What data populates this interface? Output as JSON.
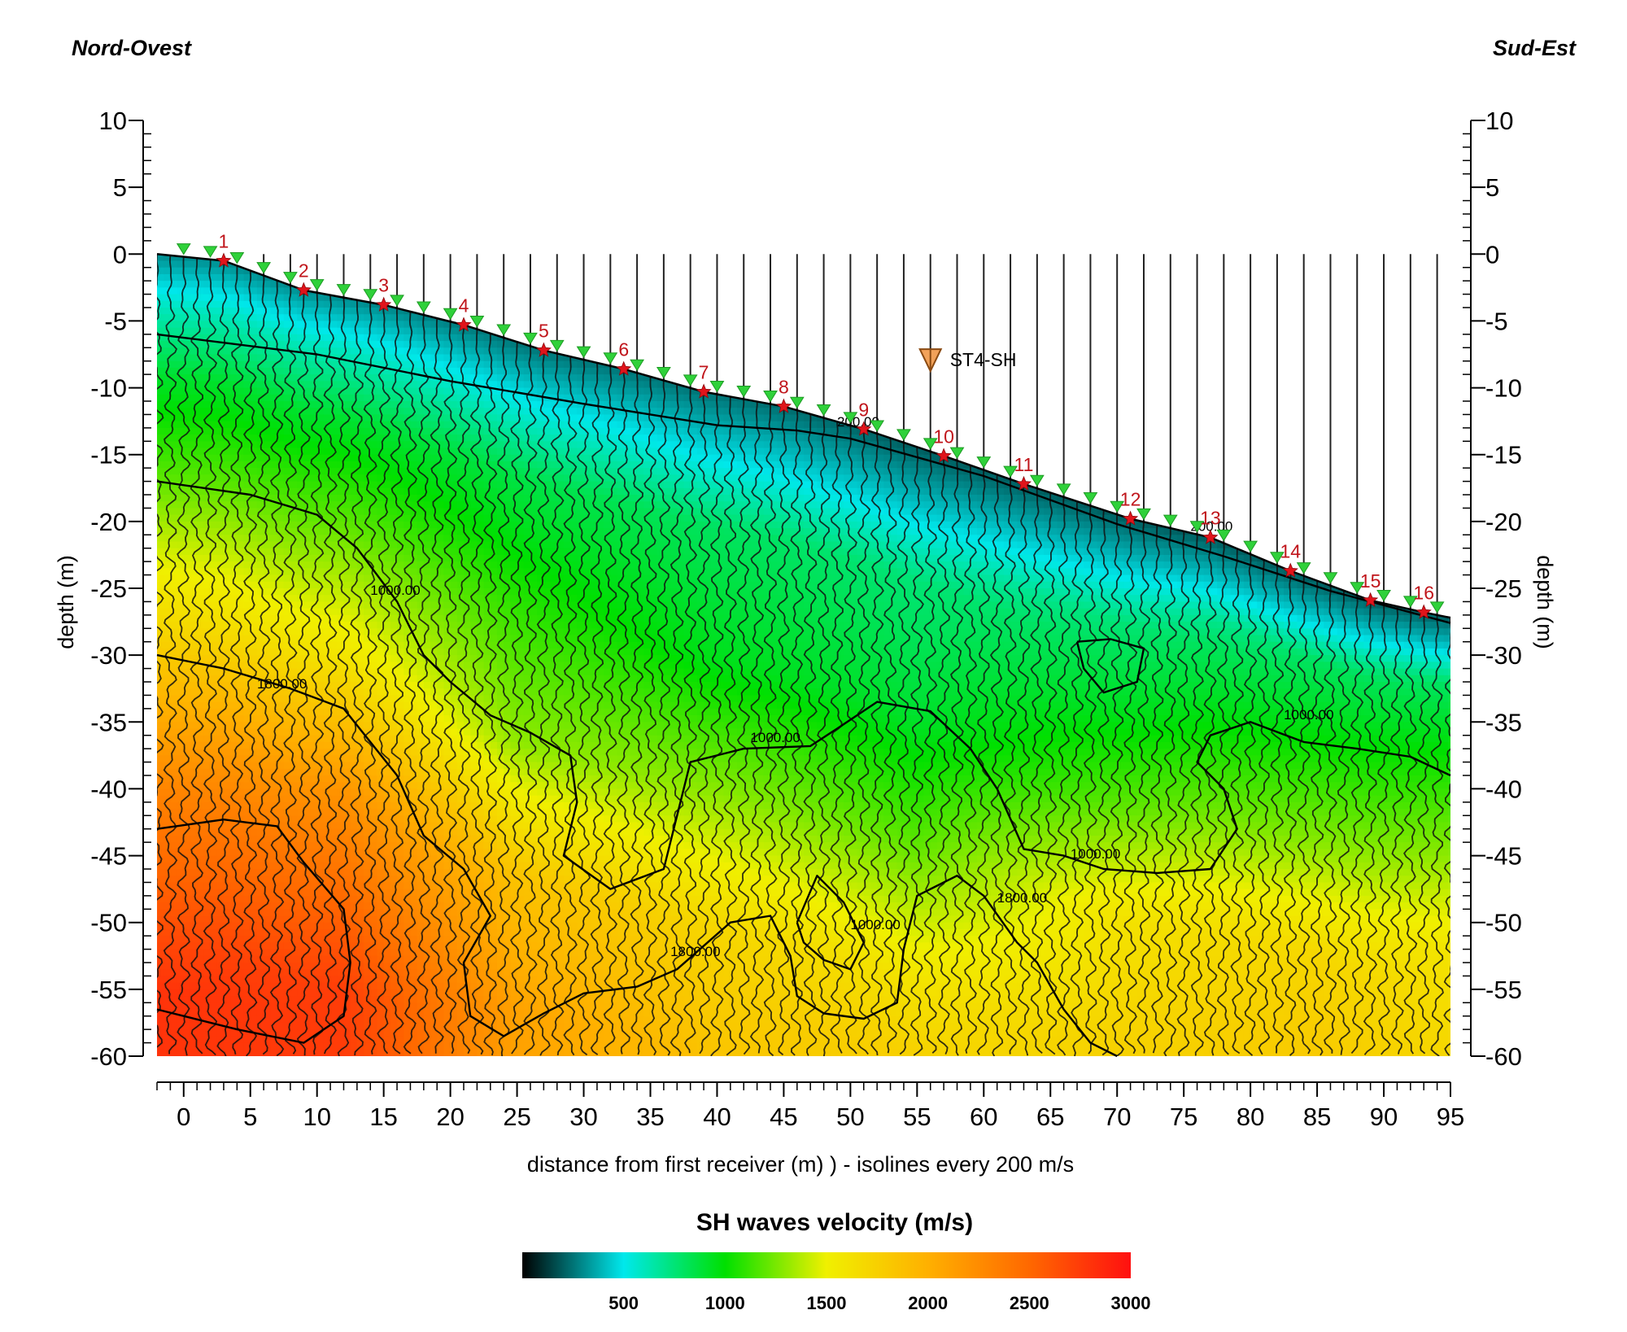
{
  "corner_left": "Nord-Ovest",
  "corner_right": "Sud-Est",
  "station_label": "ST4-SH",
  "colorbar": {
    "title": "SH waves velocity (m/s)",
    "ticks": [
      500,
      1000,
      1500,
      2000,
      2500,
      3000
    ],
    "range": [
      0,
      3000
    ],
    "stops": [
      {
        "v": 0,
        "color": "#000000"
      },
      {
        "v": 500,
        "color": "#00e8ec"
      },
      {
        "v": 1000,
        "color": "#00e000"
      },
      {
        "v": 1500,
        "color": "#f0f000"
      },
      {
        "v": 2000,
        "color": "#ffb000"
      },
      {
        "v": 2500,
        "color": "#ff6800"
      },
      {
        "v": 3000,
        "color": "#ff1010"
      }
    ]
  },
  "chart_data": {
    "type": "heatmap",
    "xlabel": "distance from first receiver (m) ) - isolines every 200 m/s",
    "ylabel": "depth (m)",
    "xlim": [
      -2,
      95
    ],
    "ylim": [
      -60,
      10
    ],
    "xticks": [
      0,
      5,
      10,
      15,
      20,
      25,
      30,
      35,
      40,
      45,
      50,
      55,
      60,
      65,
      70,
      75,
      80,
      85,
      90,
      95
    ],
    "yticks": [
      10,
      5,
      0,
      -5,
      -10,
      -15,
      -20,
      -25,
      -30,
      -35,
      -40,
      -45,
      -50,
      -55,
      -60
    ],
    "surface": [
      [
        -2,
        0
      ],
      [
        3,
        -0.5
      ],
      [
        9,
        -2.7
      ],
      [
        15,
        -3.8
      ],
      [
        21,
        -5.3
      ],
      [
        27,
        -7.2
      ],
      [
        33,
        -8.6
      ],
      [
        39,
        -10.3
      ],
      [
        45,
        -11.4
      ],
      [
        51,
        -13.1
      ],
      [
        57,
        -15.1
      ],
      [
        63,
        -17.2
      ],
      [
        71,
        -19.8
      ],
      [
        77,
        -21.2
      ],
      [
        83,
        -23.7
      ],
      [
        89,
        -25.9
      ],
      [
        93,
        -26.8
      ],
      [
        95,
        -27.2
      ]
    ],
    "sources": [
      {
        "label": "1",
        "x": 3,
        "y": -0.5
      },
      {
        "label": "2",
        "x": 9,
        "y": -2.7
      },
      {
        "label": "3",
        "x": 15,
        "y": -3.8
      },
      {
        "label": "4",
        "x": 21,
        "y": -5.3
      },
      {
        "label": "5",
        "x": 27,
        "y": -7.2
      },
      {
        "label": "6",
        "x": 33,
        "y": -8.6
      },
      {
        "label": "7",
        "x": 39,
        "y": -10.3
      },
      {
        "label": "8",
        "x": 45,
        "y": -11.4
      },
      {
        "label": "9",
        "x": 51,
        "y": -13.1
      },
      {
        "label": "10",
        "x": 57,
        "y": -15.1
      },
      {
        "label": "11",
        "x": 63,
        "y": -17.2
      },
      {
        "label": "12",
        "x": 71,
        "y": -19.8
      },
      {
        "label": "13",
        "x": 77,
        "y": -21.2
      },
      {
        "label": "14",
        "x": 83,
        "y": -23.7
      },
      {
        "label": "15",
        "x": 89,
        "y": -25.9
      },
      {
        "label": "16",
        "x": 93,
        "y": -26.8
      }
    ],
    "receivers_x": [
      0,
      2,
      4,
      6,
      8,
      10,
      12,
      14,
      16,
      18,
      20,
      22,
      24,
      26,
      28,
      30,
      32,
      34,
      36,
      38,
      40,
      42,
      44,
      46,
      48,
      50,
      52,
      54,
      56,
      58,
      60,
      62,
      64,
      66,
      68,
      70,
      72,
      74,
      76,
      78,
      80,
      82,
      84,
      86,
      88,
      90,
      92,
      94
    ],
    "trace_spacing": 1,
    "station": {
      "x": 56,
      "y": -7.9
    },
    "isolines": [
      {
        "label": "200.00",
        "points": [
          [
            -2,
            -6
          ],
          [
            10,
            -7.5
          ],
          [
            20,
            -9.5
          ],
          [
            30,
            -11.2
          ],
          [
            40,
            -12.8
          ],
          [
            46,
            -13.2
          ],
          [
            50,
            -13.8
          ],
          [
            60,
            -16.6
          ],
          [
            70,
            -20.2
          ],
          [
            78,
            -22.6
          ],
          [
            86,
            -25.2
          ],
          [
            95,
            -27.6
          ]
        ],
        "labels": [
          [
            49,
            -12.9
          ],
          [
            75.5,
            -20.7
          ]
        ]
      },
      {
        "label": "1000.00",
        "points": [
          [
            -2,
            -17
          ],
          [
            5,
            -18
          ],
          [
            10,
            -19.5
          ],
          [
            13,
            -22
          ],
          [
            16,
            -26
          ],
          [
            18,
            -30
          ],
          [
            20,
            -32
          ],
          [
            23,
            -34.5
          ],
          [
            26,
            -35.8
          ],
          [
            29,
            -37.5
          ],
          [
            29.5,
            -41
          ],
          [
            28.5,
            -45
          ],
          [
            32,
            -47.5
          ],
          [
            36,
            -46
          ],
          [
            37,
            -42
          ],
          [
            38,
            -38
          ],
          [
            42,
            -37
          ],
          [
            47,
            -36.8
          ],
          [
            49,
            -35.5
          ],
          [
            52,
            -33.5
          ],
          [
            56,
            -34.2
          ],
          [
            59,
            -37
          ],
          [
            61,
            -40
          ],
          [
            63,
            -44.5
          ],
          [
            66,
            -45
          ],
          [
            69,
            -46
          ],
          [
            73,
            -46.3
          ],
          [
            77,
            -46
          ],
          [
            79,
            -43
          ],
          [
            78,
            -40
          ],
          [
            76,
            -38
          ],
          [
            77,
            -36
          ],
          [
            80,
            -35
          ],
          [
            84,
            -36.5
          ],
          [
            88,
            -37
          ],
          [
            92,
            -37.6
          ],
          [
            95,
            -39
          ]
        ],
        "labels": [
          [
            14,
            -25.5
          ],
          [
            42.5,
            -36.5
          ],
          [
            82.5,
            -34.8
          ],
          [
            66.5,
            -45.2
          ]
        ]
      },
      {
        "label": "1000.00",
        "points": [
          [
            67,
            -29
          ],
          [
            69.5,
            -28.8
          ],
          [
            72,
            -29.5
          ],
          [
            71.5,
            -32
          ],
          [
            69,
            -32.8
          ],
          [
            67.5,
            -31
          ],
          [
            67,
            -29
          ]
        ],
        "labels": []
      },
      {
        "label": "1000.00",
        "points": [
          [
            46,
            -50
          ],
          [
            47.5,
            -46.5
          ],
          [
            49.5,
            -48.5
          ],
          [
            51,
            -51.5
          ],
          [
            50,
            -53.5
          ],
          [
            48,
            -52.8
          ],
          [
            46.5,
            -51.5
          ],
          [
            46,
            -50
          ]
        ],
        "labels": [
          [
            50,
            -50.5
          ]
        ]
      },
      {
        "label": "1800.00",
        "points": [
          [
            -2,
            -30
          ],
          [
            3,
            -31
          ],
          [
            8,
            -32.5
          ],
          [
            12,
            -34
          ],
          [
            16,
            -39
          ],
          [
            18,
            -43.5
          ],
          [
            21,
            -46
          ],
          [
            23,
            -49.5
          ],
          [
            21,
            -53
          ],
          [
            21.5,
            -57
          ],
          [
            24,
            -58.5
          ],
          [
            27,
            -56.8
          ],
          [
            30,
            -55.3
          ],
          [
            34,
            -54.8
          ],
          [
            37,
            -53.5
          ],
          [
            41,
            -50
          ],
          [
            44,
            -49.5
          ],
          [
            45.5,
            -52.5
          ],
          [
            46,
            -55.5
          ],
          [
            48,
            -56.8
          ],
          [
            51,
            -57.2
          ],
          [
            53.5,
            -56
          ],
          [
            54,
            -52
          ],
          [
            55,
            -48
          ],
          [
            58,
            -46.5
          ],
          [
            60,
            -48
          ],
          [
            62.5,
            -51.5
          ],
          [
            64,
            -53
          ],
          [
            66,
            -56.5
          ],
          [
            68,
            -59
          ],
          [
            70,
            -60
          ]
        ],
        "labels": [
          [
            5.5,
            -32.5
          ],
          [
            36.5,
            -52.5
          ],
          [
            61,
            -48.5
          ]
        ]
      },
      {
        "label": "1800.00",
        "points": [
          [
            -2,
            -43
          ],
          [
            3,
            -42.3
          ],
          [
            7,
            -42.8
          ],
          [
            9,
            -45.5
          ],
          [
            12,
            -49
          ],
          [
            12.5,
            -53
          ],
          [
            12,
            -57
          ],
          [
            9,
            -59
          ],
          [
            4,
            -58
          ],
          [
            0,
            -57
          ],
          [
            -2,
            -56.5
          ]
        ],
        "labels": []
      }
    ],
    "field_control": [
      {
        "x": -2,
        "top": 0,
        "v": [
          [
            0,
            300
          ],
          [
            4,
            600
          ],
          [
            9,
            900
          ],
          [
            17,
            1200
          ],
          [
            28,
            1700
          ],
          [
            40,
            2300
          ],
          [
            55,
            2800
          ]
        ]
      },
      {
        "x": 12,
        "top": -3.2,
        "v": [
          [
            0,
            300
          ],
          [
            4,
            600
          ],
          [
            9,
            900
          ],
          [
            17,
            1200
          ],
          [
            27,
            1600
          ],
          [
            37,
            2200
          ],
          [
            52,
            2750
          ]
        ]
      },
      {
        "x": 25,
        "top": -6.5,
        "v": [
          [
            0,
            250
          ],
          [
            5,
            550
          ],
          [
            10,
            850
          ],
          [
            20,
            1100
          ],
          [
            30,
            1300
          ],
          [
            40,
            1850
          ],
          [
            50,
            2100
          ]
        ]
      },
      {
        "x": 40,
        "top": -10.6,
        "v": [
          [
            0,
            250
          ],
          [
            5,
            500
          ],
          [
            10,
            800
          ],
          [
            20,
            950
          ],
          [
            30,
            1300
          ],
          [
            40,
            1700
          ],
          [
            50,
            1850
          ]
        ]
      },
      {
        "x": 55,
        "top": -14.5,
        "v": [
          [
            0,
            200
          ],
          [
            5,
            450
          ],
          [
            10,
            750
          ],
          [
            20,
            900
          ],
          [
            30,
            1200
          ],
          [
            40,
            1600
          ],
          [
            46,
            1750
          ]
        ]
      },
      {
        "x": 70,
        "top": -19.5,
        "v": [
          [
            0,
            200
          ],
          [
            4,
            450
          ],
          [
            8,
            750
          ],
          [
            15,
            950
          ],
          [
            22,
            1200
          ],
          [
            30,
            1600
          ],
          [
            41,
            1750
          ]
        ]
      },
      {
        "x": 85,
        "top": -24.5,
        "v": [
          [
            0,
            200
          ],
          [
            3,
            450
          ],
          [
            6,
            800
          ],
          [
            12,
            1000
          ],
          [
            20,
            1300
          ],
          [
            28,
            1700
          ],
          [
            36,
            1800
          ]
        ]
      },
      {
        "x": 95,
        "top": -27.2,
        "v": [
          [
            0,
            200
          ],
          [
            2,
            400
          ],
          [
            5,
            800
          ],
          [
            10,
            1000
          ],
          [
            18,
            1300
          ],
          [
            25,
            1600
          ],
          [
            33,
            1700
          ]
        ]
      }
    ]
  }
}
